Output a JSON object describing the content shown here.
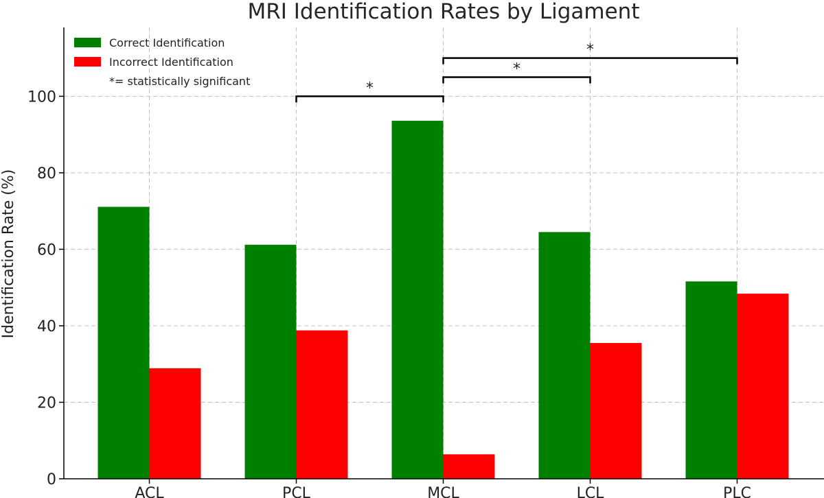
{
  "chart_data": {
    "type": "bar",
    "title": "MRI Identification Rates by Ligament",
    "xlabel": "",
    "ylabel": "Identification Rate (%)",
    "categories": [
      "ACL",
      "PCL",
      "MCL",
      "LCL",
      "PLC"
    ],
    "series": [
      {
        "name": "Correct Identification",
        "color": "#008000",
        "values": [
          71.1,
          61.2,
          93.6,
          64.5,
          51.6
        ]
      },
      {
        "name": "Incorrect Identification",
        "color": "#ff0000",
        "values": [
          28.9,
          38.8,
          6.4,
          35.5,
          48.4
        ]
      }
    ],
    "ylim": [
      0,
      118
    ],
    "yticks": [
      0,
      20,
      40,
      60,
      80,
      100
    ],
    "grid": true,
    "legend": {
      "position": "top-left",
      "note": "*= statistically significant"
    },
    "significance": [
      {
        "from": "PCL",
        "to": "MCL",
        "y": 100,
        "label": "*"
      },
      {
        "from": "MCL",
        "to": "LCL",
        "y": 105,
        "label": "*"
      },
      {
        "from": "MCL",
        "to": "PLC",
        "y": 110,
        "label": "*"
      }
    ]
  }
}
